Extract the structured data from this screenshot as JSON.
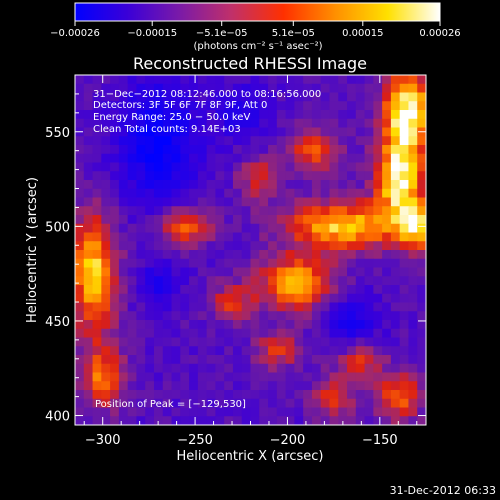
{
  "chart_data": {
    "type": "heatmap",
    "title": "Reconstructed RHESSI Image",
    "xlabel": "Heliocentric X (arcsec)",
    "ylabel": "Heliocentric Y (arcsec)",
    "xlim": [
      -315,
      -125
    ],
    "ylim": [
      395,
      580
    ],
    "x_ticks": [
      -300,
      -250,
      -200,
      -150
    ],
    "y_ticks": [
      400,
      450,
      500,
      550
    ],
    "x_tick_labels": [
      "−300",
      "−250",
      "−200",
      "−150"
    ],
    "y_tick_labels": [
      "400",
      "450",
      "500",
      "550"
    ],
    "colorbar": {
      "range": [
        -0.00026,
        0.00026
      ],
      "ticks": [
        -0.00026,
        -0.00015,
        -5.1e-05,
        5.1e-05,
        0.00015,
        0.00026
      ],
      "tick_labels": [
        "−0.00026",
        "−0.00015",
        "−5.1e−05",
        "5.1e−05",
        "0.00015",
        "0.00026"
      ],
      "unit_label": "(photons cm⁻² s⁻¹ asec⁻²)",
      "colors": [
        "#0000ff",
        "#3a00d8",
        "#7a1aa8",
        "#c0306a",
        "#ff3000",
        "#ff9000",
        "#ffe000",
        "#ffffff"
      ]
    },
    "overlay_text": [
      "31−Dec−2012 08:12:46.000 to 08:16:56.000",
      "Detectors: 3F 5F 6F 7F 8F 9F, Att 0",
      "Energy Range: 25.0 − 50.0 keV",
      "Clean      Total counts: 9.14E+03"
    ],
    "peak_label": "Position of Peak = [−129,530]",
    "peak_position": [
      -129,
      530
    ],
    "bright_regions": [
      {
        "x": -135,
        "y": 560,
        "sx": 10,
        "sy": 16,
        "amp": 1.0
      },
      {
        "x": -140,
        "y": 525,
        "sx": 9,
        "sy": 14,
        "amp": 0.9
      },
      {
        "x": -130,
        "y": 500,
        "sx": 8,
        "sy": 10,
        "amp": 0.75
      },
      {
        "x": -170,
        "y": 500,
        "sx": 22,
        "sy": 9,
        "amp": 0.85
      },
      {
        "x": -195,
        "y": 470,
        "sx": 14,
        "sy": 10,
        "amp": 0.8
      },
      {
        "x": -305,
        "y": 475,
        "sx": 9,
        "sy": 22,
        "amp": 0.85
      },
      {
        "x": -300,
        "y": 420,
        "sx": 8,
        "sy": 12,
        "amp": 0.6
      },
      {
        "x": -255,
        "y": 500,
        "sx": 10,
        "sy": 7,
        "amp": 0.6
      },
      {
        "x": -185,
        "y": 540,
        "sx": 10,
        "sy": 8,
        "amp": 0.55
      },
      {
        "x": -215,
        "y": 525,
        "sx": 8,
        "sy": 8,
        "amp": 0.45
      },
      {
        "x": -230,
        "y": 460,
        "sx": 9,
        "sy": 7,
        "amp": 0.45
      },
      {
        "x": -140,
        "y": 410,
        "sx": 9,
        "sy": 9,
        "amp": 0.6
      },
      {
        "x": -160,
        "y": 430,
        "sx": 8,
        "sy": 7,
        "amp": 0.5
      },
      {
        "x": -175,
        "y": 410,
        "sx": 8,
        "sy": 8,
        "amp": 0.5
      },
      {
        "x": -205,
        "y": 435,
        "sx": 9,
        "sy": 7,
        "amp": 0.45
      }
    ],
    "dark_regions": [
      {
        "x": -270,
        "y": 545,
        "sx": 15,
        "sy": 22,
        "amp": -0.6
      },
      {
        "x": -225,
        "y": 560,
        "sx": 10,
        "sy": 10,
        "amp": -0.35
      },
      {
        "x": -165,
        "y": 450,
        "sx": 10,
        "sy": 10,
        "amp": -0.4
      },
      {
        "x": -270,
        "y": 470,
        "sx": 8,
        "sy": 8,
        "amp": -0.35
      }
    ]
  },
  "footer": {
    "timestamp": "31-Dec-2012 06:33"
  }
}
